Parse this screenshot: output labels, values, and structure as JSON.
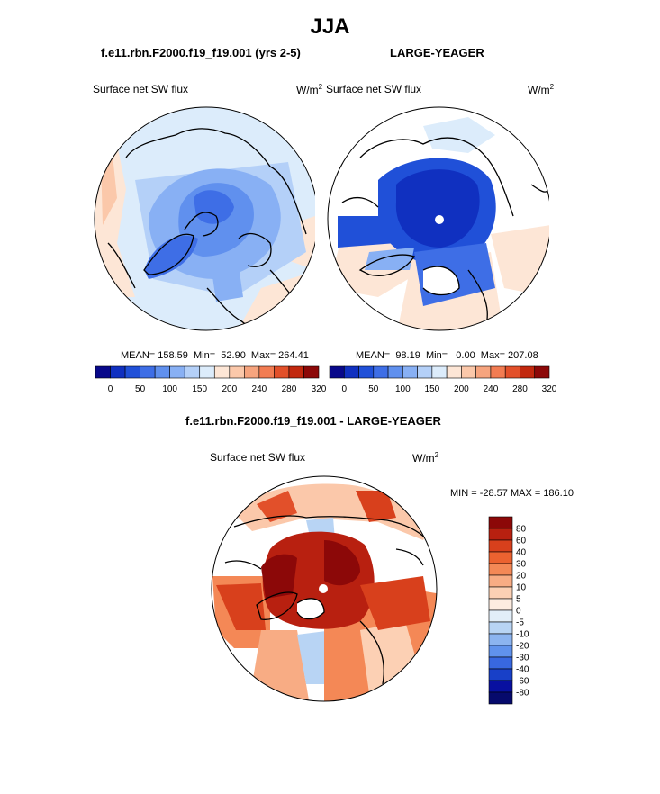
{
  "title": "JJA",
  "top_panels": {
    "left": {
      "subtitle": "f.e11.rbn.F2000.f19_f19.001 (yrs 2-5)",
      "variable": "Surface net SW flux",
      "units_base": "W/m",
      "units_exp": "2",
      "stats": "MEAN= 158.59  Min=  52.90  Max= 264.41"
    },
    "right": {
      "subtitle": "LARGE-YEAGER",
      "variable": "Surface net SW flux",
      "units_base": "W/m",
      "units_exp": "2",
      "stats": "MEAN=  98.19  Min=   0.00  Max= 207.08"
    }
  },
  "bottom_panel": {
    "subtitle": "f.e11.rbn.F2000.f19_f19.001 - LARGE-YEAGER",
    "variable": "Surface net SW flux",
    "units_base": "W/m",
    "units_exp": "2",
    "minmax": "MIN = -28.57 MAX = 186.10"
  },
  "colorbar_top": {
    "colors": [
      "#08088a",
      "#1030c0",
      "#2050d8",
      "#3e6ee6",
      "#6090ee",
      "#88b0f4",
      "#b4d0f8",
      "#dcecfb",
      "#fde6d6",
      "#fbc8aa",
      "#f6a47e",
      "#f27c52",
      "#e2502a",
      "#c2280e",
      "#8c0808"
    ],
    "tick_labels": [
      "0",
      "50",
      "100",
      "150",
      "200",
      "240",
      "280",
      "320"
    ]
  },
  "colorbar_diff": {
    "colors": [
      "#8c0808",
      "#b82010",
      "#d8401c",
      "#ec6230",
      "#f48856",
      "#f8ac84",
      "#fcd0b4",
      "#fdece0",
      "#e2eef8",
      "#b8d4f4",
      "#8cb4f0",
      "#6092ec",
      "#3868e0",
      "#1840c8",
      "#0810a0",
      "#060a6c"
    ],
    "tick_labels": [
      "80",
      "60",
      "40",
      "30",
      "20",
      "10",
      "5",
      "0",
      "-5",
      "-10",
      "-20",
      "-30",
      "-40",
      "-60",
      "-80"
    ]
  }
}
